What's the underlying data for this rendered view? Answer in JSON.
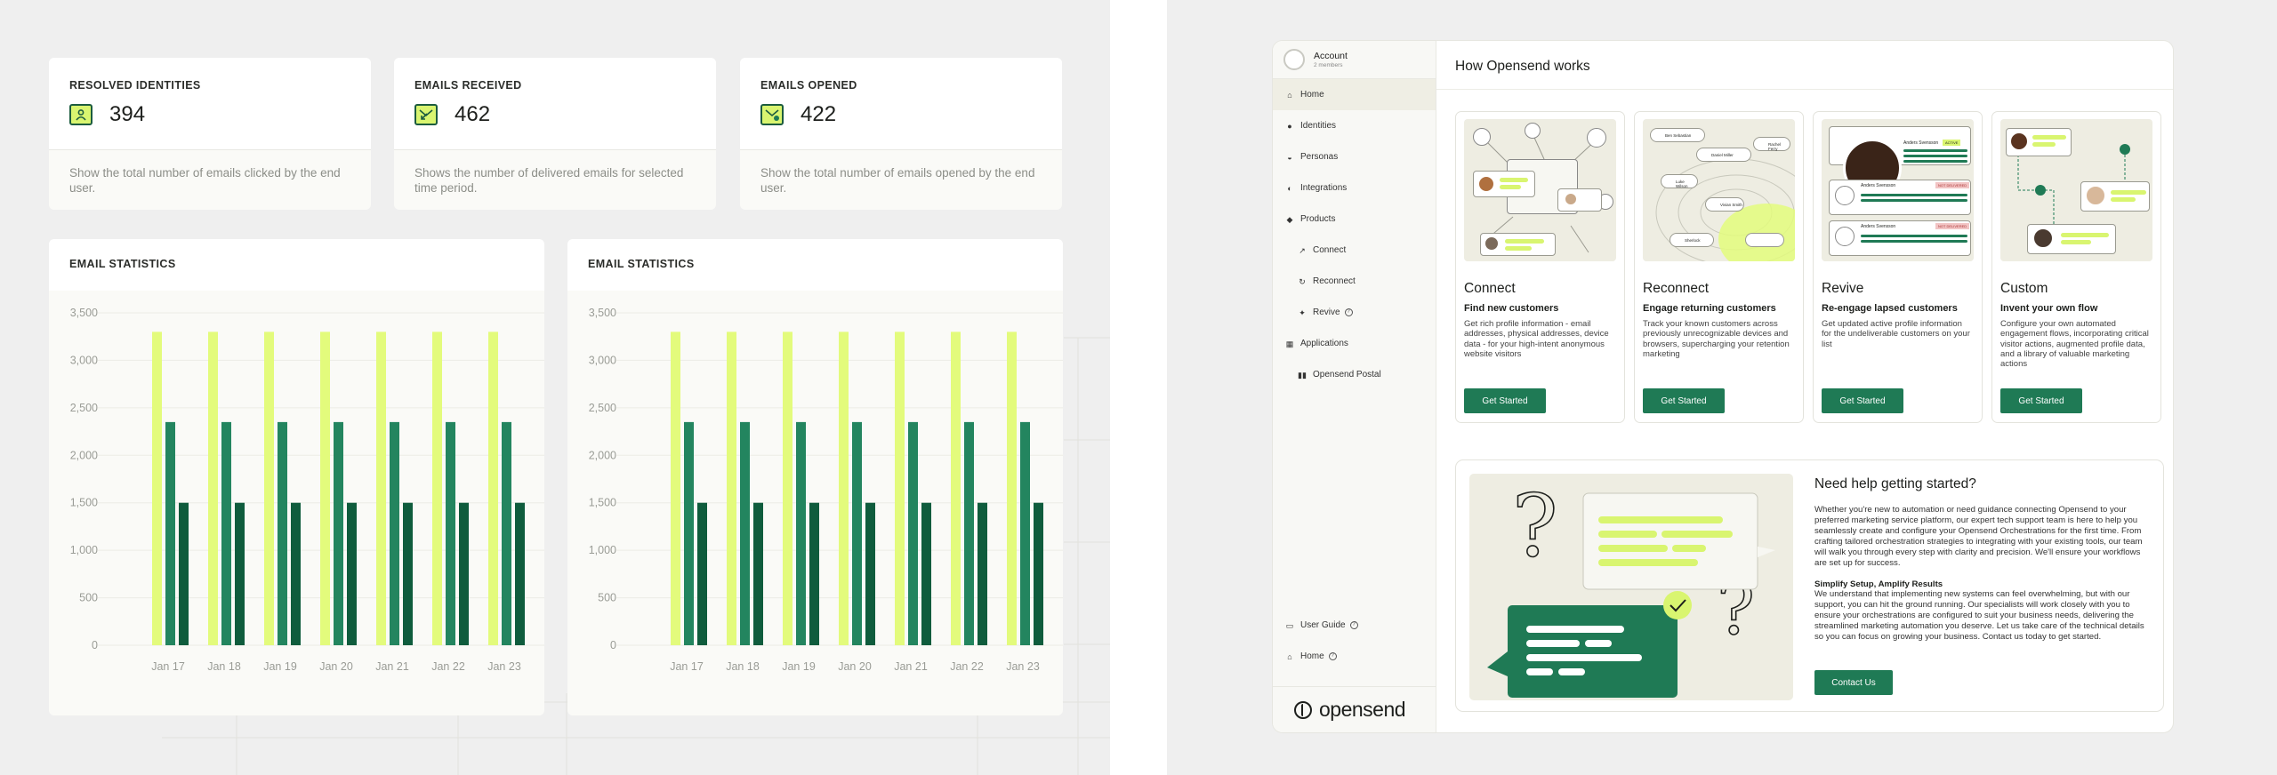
{
  "stats": [
    {
      "title": "RESOLVED IDENTITIES",
      "value": "394",
      "icon": "person-icon",
      "desc": "Show the total number of emails clicked by the end user."
    },
    {
      "title": "EMAILS RECEIVED",
      "value": "462",
      "icon": "email-received-icon",
      "desc": "Shows the number of delivered emails for selected time period."
    },
    {
      "title": "EMAILS OPENED",
      "value": "422",
      "icon": "email-opened-icon",
      "desc": "Show the total number of emails opened by the end user."
    }
  ],
  "chart_data": [
    {
      "type": "bar",
      "title": "EMAIL STATISTICS",
      "categories": [
        "Jan 17",
        "Jan 18",
        "Jan 19",
        "Jan 20",
        "Jan 21",
        "Jan 22",
        "Jan 23"
      ],
      "series": [
        {
          "values": [
            3300,
            3300,
            3300,
            3300,
            3300,
            3300,
            3300
          ],
          "color": "#e3fb7c"
        },
        {
          "values": [
            2350,
            2350,
            2350,
            2350,
            2350,
            2350,
            2350
          ],
          "color": "#23855f"
        },
        {
          "values": [
            1500,
            1500,
            1500,
            1500,
            1500,
            1500,
            1500
          ],
          "color": "#0f5c3d"
        }
      ],
      "yticks": [
        "3,500",
        "3,000",
        "2,500",
        "2,000",
        "1,500",
        "1,000",
        "500",
        "0"
      ],
      "ylim": [
        0,
        3500
      ],
      "grid": true
    },
    {
      "type": "bar",
      "title": "EMAIL STATISTICS",
      "categories": [
        "Jan 17",
        "Jan 18",
        "Jan 19",
        "Jan 20",
        "Jan 21",
        "Jan 22",
        "Jan 23"
      ],
      "series": [
        {
          "values": [
            3300,
            3300,
            3300,
            3300,
            3300,
            3300,
            3300
          ],
          "color": "#e3fb7c"
        },
        {
          "values": [
            2350,
            2350,
            2350,
            2350,
            2350,
            2350,
            2350
          ],
          "color": "#23855f"
        },
        {
          "values": [
            1500,
            1500,
            1500,
            1500,
            1500,
            1500,
            1500
          ],
          "color": "#0f5c3d"
        }
      ],
      "yticks": [
        "3,500",
        "3,000",
        "2,500",
        "2,000",
        "1,500",
        "1,000",
        "500",
        "0"
      ],
      "ylim": [
        0,
        3500
      ],
      "grid": true
    }
  ],
  "app": {
    "account": {
      "name": "Account",
      "members": "2 members"
    },
    "nav": [
      {
        "label": "Home",
        "icon": "home-icon"
      },
      {
        "label": "Identities",
        "icon": "person-icon"
      },
      {
        "label": "Personas",
        "icon": "persona-icon"
      },
      {
        "label": "Integrations",
        "icon": "integration-icon"
      },
      {
        "label": "Products",
        "icon": "box-icon"
      },
      {
        "label": "Connect",
        "icon": "link-icon"
      },
      {
        "label": "Reconnect",
        "icon": "reconnect-icon"
      },
      {
        "label": "Revive",
        "icon": "revive-icon"
      },
      {
        "label": "Applications",
        "icon": "apps-icon"
      },
      {
        "label": "Opensend Postal",
        "icon": "postal-icon"
      }
    ],
    "bottom_nav": [
      {
        "label": "User Guide",
        "icon": "book-icon"
      },
      {
        "label": "Home",
        "icon": "home-icon"
      }
    ],
    "logo_text": "opensend",
    "header": "How Opensend works",
    "cards": [
      {
        "title": "Connect",
        "subtitle": "Find new customers",
        "desc": "Get rich profile information - email addresses, physical addresses, device data - for your high-intent anonymous website visitors",
        "button": "Get Started"
      },
      {
        "title": "Reconnect",
        "subtitle": "Engage returning customers",
        "desc": "Track your known customers across previously unrecognizable devices and browsers, supercharging your retention marketing",
        "button": "Get Started"
      },
      {
        "title": "Revive",
        "subtitle": "Re-engage lapsed customers",
        "desc": "Get updated active profile information for the undeliverable customers on your list",
        "button": "Get Started"
      },
      {
        "title": "Custom",
        "subtitle": "Invent your own flow",
        "desc": "Configure your own automated engagement flows, incorporating critical visitor actions, augmented profile data, and a library of valuable marketing actions",
        "button": "Get Started"
      }
    ],
    "illus": {
      "reconnect_names": [
        "Ben Sebastian",
        "Daniel Miller",
        "Rachel Ferry",
        "Luke Wilson",
        "Vivian Smith",
        "Sherlock"
      ],
      "revive_name": "Anders Svensson",
      "revive_badges": [
        "ACTIVE",
        "NOT DELIVERED",
        "NOT DELIVERED"
      ]
    },
    "help": {
      "title": "Need help getting started?",
      "body": "Whether you're new to automation or need guidance connecting Opensend to your preferred marketing service platform, our expert tech support team is here to help you seamlessly create and configure your Opensend Orchestrations for the first time. From crafting tailored orchestration strategies to integrating with your existing tools, our team will walk you through every step with clarity and precision. We'll ensure your workflows are set up for success.",
      "subtitle": "Simplify Setup, Amplify Results",
      "body2": "We understand that implementing new systems can feel overwhelming, but with our support, you can hit the ground running. Our specialists will work closely with you to ensure your orchestrations are configured to suit your business needs, delivering the streamlined marketing automation you deserve. Let us take care of the technical details so you can focus on growing your business. Contact us today to get started.",
      "button": "Contact Us"
    }
  }
}
